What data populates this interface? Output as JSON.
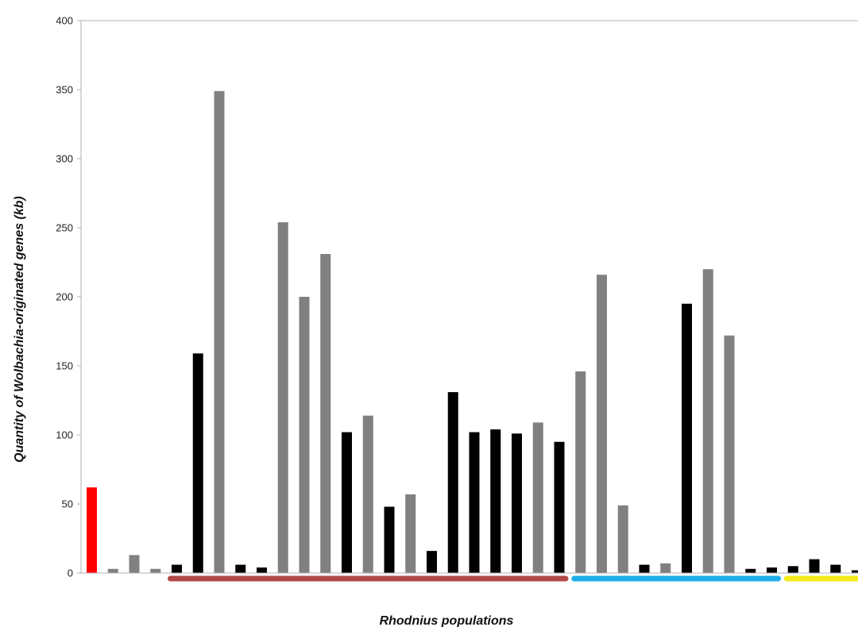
{
  "chart_data": {
    "type": "bar",
    "xlabel": "Rhodnius populations",
    "ylabel": "Quantity of Wolbachia-originated genes (kb)",
    "ylim": [
      0,
      400
    ],
    "yticks": [
      0,
      50,
      100,
      150,
      200,
      250,
      300,
      350,
      400
    ],
    "grid": false,
    "legend": "none",
    "bars": [
      {
        "value": 62,
        "color": "#ff0000"
      },
      {
        "value": 3,
        "color": "#808080"
      },
      {
        "value": 13,
        "color": "#808080"
      },
      {
        "value": 3,
        "color": "#808080"
      },
      {
        "value": 6,
        "color": "#000000"
      },
      {
        "value": 159,
        "color": "#000000"
      },
      {
        "value": 349,
        "color": "#808080"
      },
      {
        "value": 6,
        "color": "#000000"
      },
      {
        "value": 4,
        "color": "#000000"
      },
      {
        "value": 254,
        "color": "#808080"
      },
      {
        "value": 200,
        "color": "#808080"
      },
      {
        "value": 231,
        "color": "#808080"
      },
      {
        "value": 102,
        "color": "#000000"
      },
      {
        "value": 114,
        "color": "#808080"
      },
      {
        "value": 48,
        "color": "#000000"
      },
      {
        "value": 57,
        "color": "#808080"
      },
      {
        "value": 16,
        "color": "#000000"
      },
      {
        "value": 131,
        "color": "#000000"
      },
      {
        "value": 102,
        "color": "#000000"
      },
      {
        "value": 104,
        "color": "#000000"
      },
      {
        "value": 101,
        "color": "#000000"
      },
      {
        "value": 109,
        "color": "#808080"
      },
      {
        "value": 95,
        "color": "#000000"
      },
      {
        "value": 146,
        "color": "#808080"
      },
      {
        "value": 216,
        "color": "#808080"
      },
      {
        "value": 49,
        "color": "#808080"
      },
      {
        "value": 6,
        "color": "#000000"
      },
      {
        "value": 7,
        "color": "#808080"
      },
      {
        "value": 195,
        "color": "#000000"
      },
      {
        "value": 220,
        "color": "#808080"
      },
      {
        "value": 172,
        "color": "#808080"
      },
      {
        "value": 3,
        "color": "#000000"
      },
      {
        "value": 4,
        "color": "#000000"
      },
      {
        "value": 5,
        "color": "#000000"
      },
      {
        "value": 10,
        "color": "#000000"
      },
      {
        "value": 6,
        "color": "#000000"
      },
      {
        "value": 2,
        "color": "#000000"
      }
    ],
    "group_bars": [
      {
        "from_bar": 4,
        "to_bar": 22,
        "color": "#b04848"
      },
      {
        "from_bar": 23,
        "to_bar": 32,
        "color": "#1eaee8"
      },
      {
        "from_bar": 33,
        "to_bar": 36,
        "color": "#f5eb1a"
      }
    ]
  }
}
